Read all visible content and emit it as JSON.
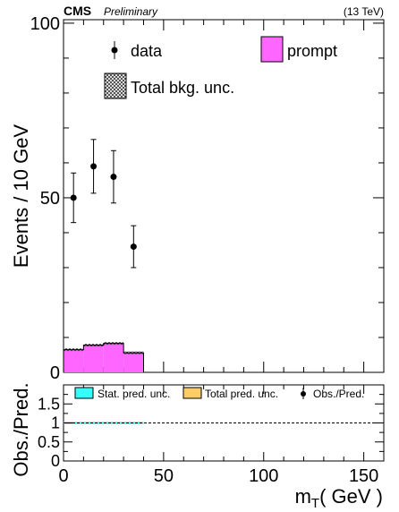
{
  "header": {
    "experiment": "CMS",
    "status": "Preliminary",
    "energy": "(13 TeV)"
  },
  "chart_data": [
    {
      "type": "bar",
      "panel": "main",
      "ylabel": "Events / 10 GeV",
      "xlim": [
        0,
        160
      ],
      "ylim": [
        0,
        101
      ],
      "y_ticks": [
        0,
        50,
        100
      ],
      "grid": false,
      "legend": {
        "data": "data",
        "prompt": "prompt",
        "unc": "Total bkg. unc."
      },
      "bins": [
        {
          "x_low": 0,
          "x_high": 10,
          "prompt": 6.5,
          "data": 50,
          "err": 7.1
        },
        {
          "x_low": 10,
          "x_high": 20,
          "prompt": 7.8,
          "data": 59,
          "err": 7.7
        },
        {
          "x_low": 20,
          "x_high": 30,
          "prompt": 8.3,
          "data": 56,
          "err": 7.5
        },
        {
          "x_low": 30,
          "x_high": 40,
          "prompt": 5.6,
          "data": 36,
          "err": 6.0
        }
      ],
      "colors": {
        "prompt": "#ff66ff",
        "data": "#000000"
      }
    },
    {
      "type": "line",
      "panel": "ratio",
      "ylabel": "Obs./Pred.",
      "xlabel_main": "m",
      "xlabel_sub": "T",
      "xlabel_unit": "( GeV )",
      "xlim": [
        0,
        160
      ],
      "ylim": [
        0,
        2
      ],
      "x_ticks": [
        "0",
        "50",
        "100",
        "150"
      ],
      "x_tick_values": [
        0,
        50,
        100,
        150
      ],
      "y_ticks": [
        "0",
        "0.5",
        "1",
        "1.5"
      ],
      "y_tick_values": [
        0,
        0.5,
        1,
        1.5
      ],
      "reference_line": 1,
      "stat_band": {
        "x_low": 0,
        "x_high": 40,
        "low": 0.97,
        "high": 1.03
      },
      "legend": {
        "stat": "Stat. pred. unc.",
        "total": "Total pred. unc.",
        "obs": "Obs./Pred."
      },
      "colors": {
        "stat": "#33ffff",
        "total": "#ffcc66",
        "line": "#000000"
      }
    }
  ]
}
